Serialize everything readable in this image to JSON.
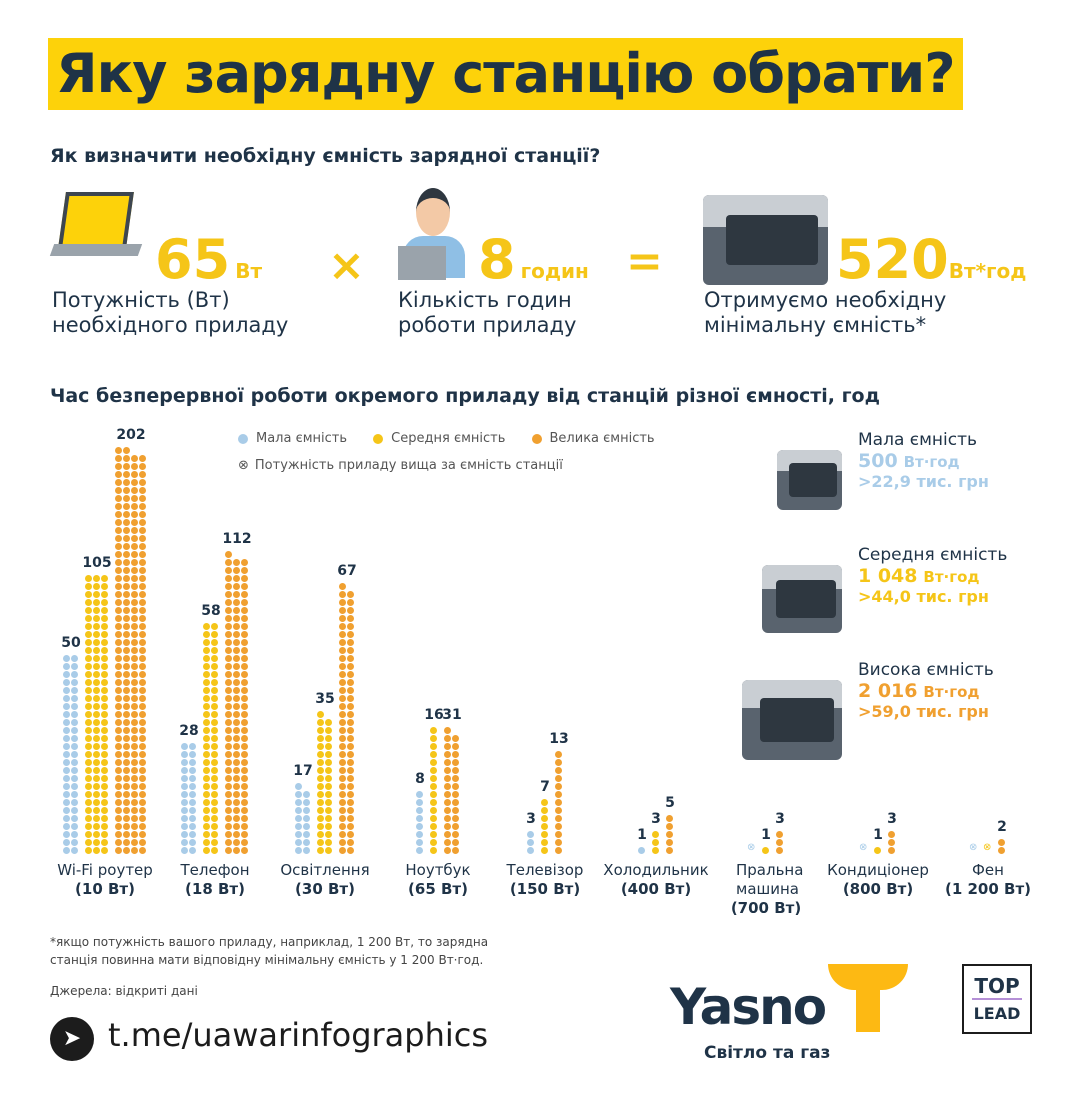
{
  "title": "Яку зарядну станцію обрати?",
  "formula": {
    "heading": "Як визначити необхідну ємність зарядної станції?",
    "power_value": "65",
    "power_unit": "Вт",
    "power_caption_1": "Потужність (Вт)",
    "power_caption_2": "необхідного приладу",
    "times": "×",
    "hours_value": "8",
    "hours_unit": "годин",
    "hours_caption_1": "Кількість годин",
    "hours_caption_2": "роботи приладу",
    "equals": "=",
    "result_value": "520",
    "result_unit": "Вт*год",
    "result_caption_1": "Отримуємо необхідну",
    "result_caption_2": "мінімальну ємність*"
  },
  "colors": {
    "small": "#a9cce8",
    "medium": "#f5c518",
    "large": "#f0a030",
    "title_bg": "#fdd20a",
    "text": "#1f3347"
  },
  "chart_data": {
    "type": "bar",
    "title": "Час безперервної роботи окремого приладу від станцій різної ємності, год",
    "categories": [
      {
        "name": "Wi-Fi роутер",
        "power": "(10 Вт)"
      },
      {
        "name": "Телефон",
        "power": "(18 Вт)"
      },
      {
        "name": "Освітлення",
        "power": "(30 Вт)"
      },
      {
        "name": "Ноутбук",
        "power": "(65 Вт)"
      },
      {
        "name": "Телевізор",
        "power": "(150 Вт)"
      },
      {
        "name": "Холодильник",
        "power": "(400 Вт)"
      },
      {
        "name": "Пральна машина",
        "power": "(700 Вт)"
      },
      {
        "name": "Кондиціонер",
        "power": "(800 Вт)"
      },
      {
        "name": "Фен",
        "power": "(1 200 Вт)"
      }
    ],
    "series": [
      {
        "name": "Мала ємність",
        "values": [
          50,
          28,
          17,
          8,
          3,
          1,
          null,
          null,
          null
        ]
      },
      {
        "name": "Середня ємність",
        "values": [
          105,
          58,
          35,
          16,
          7,
          3,
          1,
          1,
          null
        ]
      },
      {
        "name": "Велика ємність",
        "values": [
          202,
          112,
          67,
          31,
          13,
          5,
          3,
          3,
          2
        ]
      }
    ],
    "legend_note": "Потужність приладу вища за ємність станції",
    "legend_position": "top"
  },
  "stations": [
    {
      "name": "Мала ємність",
      "capacity": "500",
      "unit": "Вт·год",
      "price": ">22,9 тис. грн"
    },
    {
      "name": "Середня ємність",
      "capacity": "1 048",
      "unit": "Вт·год",
      "price": ">44,0 тис. грн"
    },
    {
      "name": "Висока ємність",
      "capacity": "2 016",
      "unit": "Вт·год",
      "price": ">59,0 тис. грн"
    }
  ],
  "footnote_1": "*якщо потужність вашого приладу, наприклад, 1 200 Вт, то зарядна",
  "footnote_2": "станція повинна мати відповідну мінімальну ємність у 1 200 Вт·год.",
  "sources": "Джерела: відкриті дані",
  "telegram": "t.me/uawarinfographics",
  "brand": {
    "name": "Yasno",
    "tagline": "Світло та газ"
  },
  "partner": {
    "line1": "TOP",
    "line2": "LEAD"
  }
}
